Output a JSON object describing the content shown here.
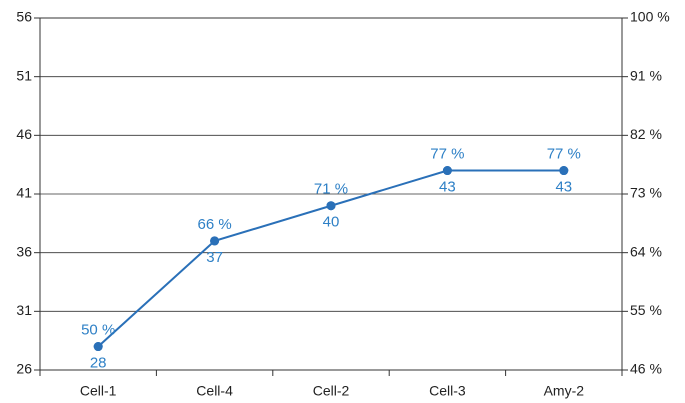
{
  "chart_data": {
    "type": "line",
    "categories": [
      "Cell-1",
      "Cell-4",
      "Cell-2",
      "Cell-3",
      "Amy-2"
    ],
    "series": [
      {
        "color": "#2a70b8",
        "values": [
          28,
          37,
          40,
          43,
          43
        ]
      },
      {
        "color": "#2a70b8",
        "axis": "y2",
        "values": [
          50,
          66,
          71,
          77,
          77
        ],
        "value_labels": [
          "50 %",
          "66 %",
          "71 %",
          "77 %",
          "77 %"
        ]
      }
    ],
    "ylim": [
      26,
      56
    ],
    "yticks": [
      26,
      31,
      36,
      41,
      46,
      51,
      56
    ],
    "y2lim": [
      46,
      100
    ],
    "y2ticks": [
      {
        "value": 46,
        "label": "46 %"
      },
      {
        "value": 55,
        "label": "55 %"
      },
      {
        "value": 64,
        "label": "64 %"
      },
      {
        "value": 73,
        "label": "73 %"
      },
      {
        "value": 82,
        "label": "82 %"
      },
      {
        "value": 91,
        "label": "91 %"
      },
      {
        "value": 100,
        "label": "100 %"
      }
    ],
    "grid": true
  }
}
